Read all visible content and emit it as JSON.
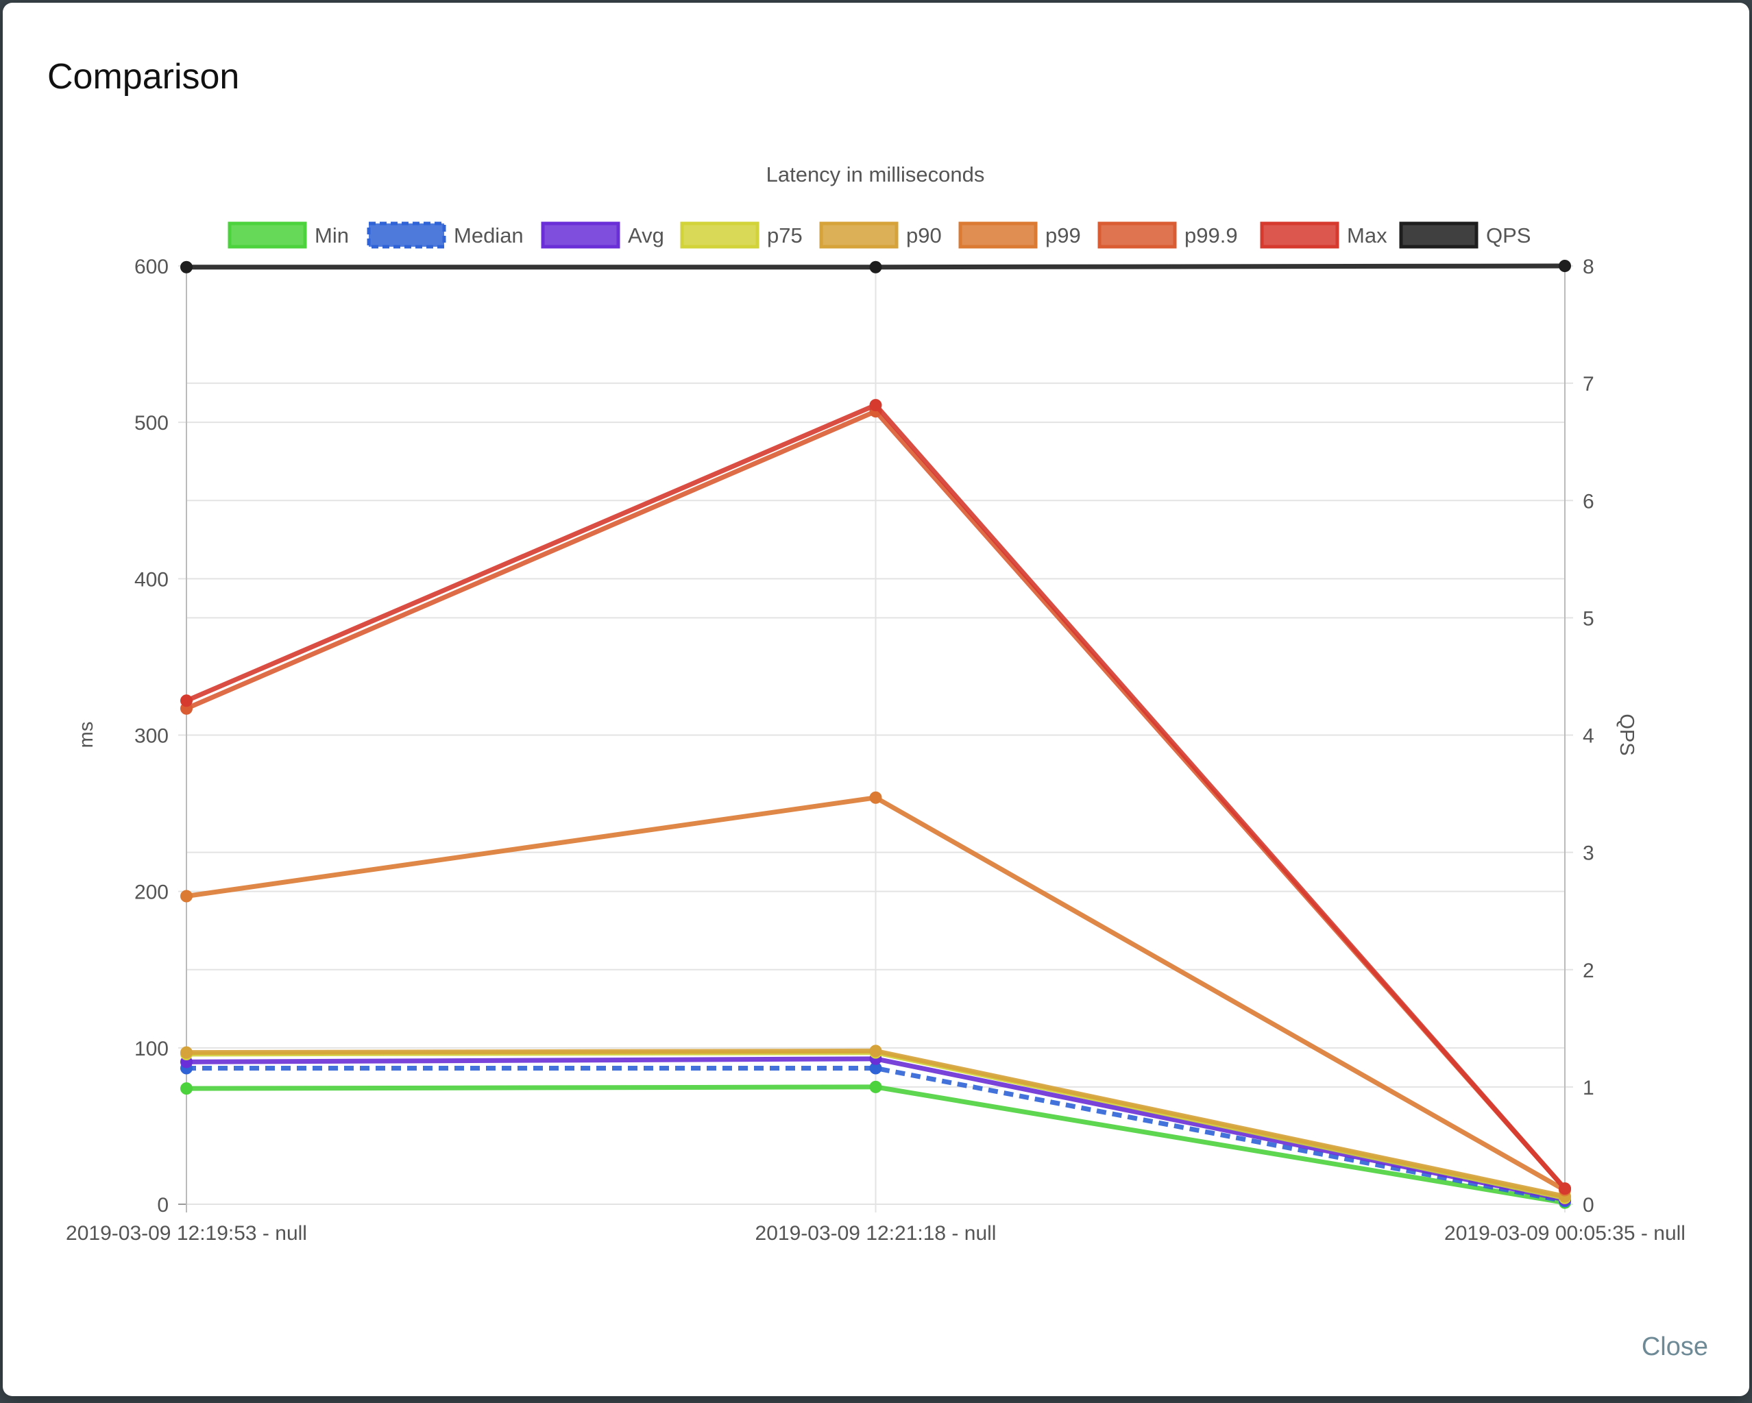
{
  "modal": {
    "title": "Comparison",
    "close_label": "Close"
  },
  "chart_data": {
    "type": "line",
    "title": "Latency in milliseconds",
    "ylabel": "ms",
    "y2label": "QPS",
    "xlabel": "",
    "ylim": [
      0,
      600
    ],
    "y2lim": [
      0,
      8
    ],
    "yticks": [
      0,
      100,
      200,
      300,
      400,
      500,
      600
    ],
    "y2ticks": [
      0,
      1,
      2,
      3,
      4,
      5,
      6,
      7,
      8
    ],
    "grid": true,
    "legend_position": "top",
    "categories": [
      "2019-03-09 12:19:53 - null",
      "2019-03-09 12:21:18 - null",
      "2019-03-09 00:05:35 - null"
    ],
    "series": [
      {
        "name": "Min",
        "color": "#4cd23c",
        "axis": "left",
        "dashed": false,
        "values": [
          74,
          75,
          1
        ]
      },
      {
        "name": "Median",
        "color": "#2f63d6",
        "axis": "left",
        "dashed": true,
        "values": [
          87,
          87,
          2
        ]
      },
      {
        "name": "Avg",
        "color": "#6a2fd6",
        "axis": "left",
        "dashed": false,
        "values": [
          91,
          93,
          3
        ]
      },
      {
        "name": "p75",
        "color": "#d2d23a",
        "axis": "left",
        "dashed": false,
        "values": [
          96,
          97,
          4
        ]
      },
      {
        "name": "p90",
        "color": "#d6a23a",
        "axis": "left",
        "dashed": false,
        "values": [
          97,
          98,
          5
        ]
      },
      {
        "name": "p99",
        "color": "#db7a33",
        "axis": "left",
        "dashed": false,
        "values": [
          197,
          260,
          9
        ]
      },
      {
        "name": "p99.9",
        "color": "#d95c33",
        "axis": "left",
        "dashed": false,
        "values": [
          317,
          507,
          10
        ]
      },
      {
        "name": "Max",
        "color": "#d63a2f",
        "axis": "left",
        "dashed": false,
        "values": [
          322,
          511,
          10
        ]
      },
      {
        "name": "QPS",
        "color": "#1e1e1e",
        "axis": "right",
        "dashed": false,
        "values": [
          7.99,
          7.99,
          8.0
        ]
      }
    ]
  }
}
